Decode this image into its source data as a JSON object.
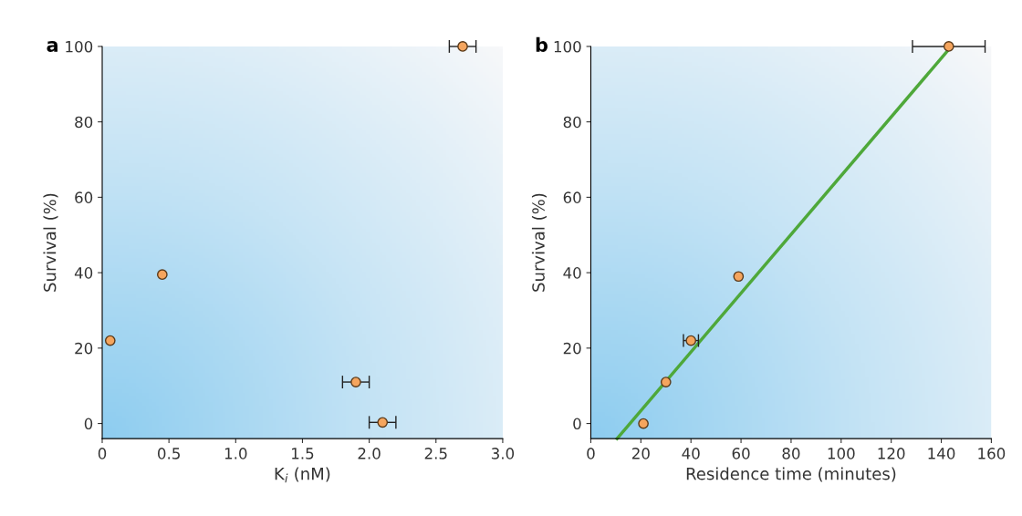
{
  "chart_data": [
    {
      "type": "scatter",
      "title": "a",
      "xlabel": "K$_{i}$ (nM)",
      "ylabel": "Survival (%)",
      "xlim": [
        0,
        3
      ],
      "ylim": [
        -4,
        100
      ],
      "xticks": [
        0,
        {
          "value": 0.5,
          "label": "0.5"
        },
        {
          "value": 1,
          "label": "1.0"
        },
        {
          "value": 1.5,
          "label": "1.5"
        },
        {
          "value": 2,
          "label": "2.0"
        },
        {
          "value": 2.5,
          "label": "2.5"
        },
        {
          "value": 3,
          "label": "3.0"
        }
      ],
      "yticks": [
        0,
        20,
        40,
        60,
        80,
        100
      ],
      "grid": false,
      "marker": "circle",
      "series": [
        {
          "color": "#f5a55e",
          "x": [
            0.06,
            0.45,
            1.9,
            2.1,
            2.7
          ],
          "values": [
            22,
            39.5,
            11,
            0.3,
            100
          ],
          "xerrors": [
            null,
            null,
            0.1,
            0.1,
            0.1
          ]
        }
      ]
    },
    {
      "type": "scatter",
      "title": "b",
      "xlabel": "Residence time (minutes)",
      "ylabel": "Survival (%)",
      "xlim": [
        0,
        160
      ],
      "ylim": [
        -4,
        100
      ],
      "xticks": [
        0,
        20,
        40,
        60,
        80,
        100,
        120,
        140,
        160
      ],
      "yticks": [
        0,
        20,
        40,
        60,
        80,
        100
      ],
      "grid": false,
      "marker": "circle",
      "series": [
        {
          "type": "line",
          "color": "#4ea83a",
          "x": [
            10.5,
            144
          ],
          "values": [
            -4,
            100
          ],
          "line_style": "solid",
          "marker": "none"
        },
        {
          "color": "#f5a55e",
          "x": [
            21,
            30,
            40,
            59,
            143
          ],
          "values": [
            0,
            11,
            22,
            39,
            100
          ],
          "xerrors": [
            null,
            null,
            3,
            null,
            14.5
          ]
        }
      ]
    }
  ]
}
